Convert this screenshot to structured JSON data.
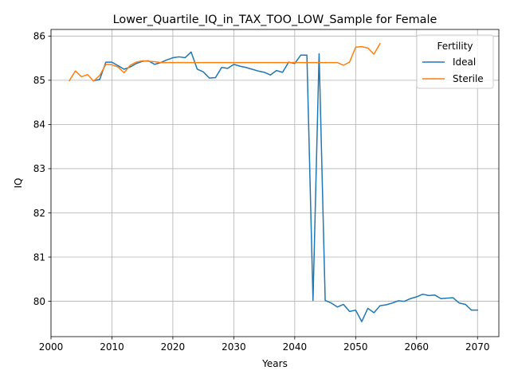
{
  "chart_data": {
    "type": "line",
    "title": "Lower_Quartile_IQ_in_TAX_TOO_LOW_Sample for Female",
    "xlabel": "Years",
    "ylabel": "IQ",
    "xlim": [
      2000,
      2073.5
    ],
    "ylim": [
      79.2,
      86.15
    ],
    "xticks": [
      2000,
      2010,
      2020,
      2030,
      2040,
      2050,
      2060,
      2070
    ],
    "yticks": [
      80,
      81,
      82,
      83,
      84,
      85,
      86
    ],
    "grid": true,
    "legend": {
      "title": "Fertility",
      "position": "top-right"
    },
    "series": [
      {
        "name": "Ideal",
        "color": "#1f77b4",
        "x": [
          2007,
          2008,
          2009,
          2010,
          2011,
          2012,
          2013,
          2014,
          2015,
          2016,
          2017,
          2018,
          2019,
          2020,
          2021,
          2022,
          2023,
          2024,
          2025,
          2026,
          2027,
          2028,
          2029,
          2030,
          2031,
          2032,
          2033,
          2034,
          2035,
          2036,
          2037,
          2038,
          2039,
          2040,
          2041,
          2042,
          2043,
          2044,
          2045,
          2046,
          2047,
          2048,
          2049,
          2050,
          2051,
          2052,
          2053,
          2054,
          2055,
          2056,
          2057,
          2058,
          2059,
          2060,
          2061,
          2062,
          2063,
          2064,
          2065,
          2066,
          2067,
          2068,
          2069,
          2070
        ],
        "y": [
          84.99,
          85.02,
          85.41,
          85.41,
          85.33,
          85.25,
          85.3,
          85.38,
          85.43,
          85.44,
          85.36,
          85.4,
          85.46,
          85.51,
          85.53,
          85.51,
          85.64,
          85.25,
          85.19,
          85.05,
          85.06,
          85.29,
          85.27,
          85.36,
          85.32,
          85.29,
          85.25,
          85.21,
          85.18,
          85.12,
          85.22,
          85.18,
          85.41,
          85.38,
          85.57,
          85.57,
          80.02,
          85.6,
          80.02,
          79.96,
          79.87,
          79.93,
          79.77,
          79.8,
          79.54,
          79.84,
          79.74,
          79.9,
          79.92,
          79.96,
          80.01,
          80.0,
          80.06,
          80.1,
          80.16,
          80.13,
          80.14,
          80.06,
          80.07,
          80.08,
          79.96,
          79.93,
          79.8,
          79.8
        ]
      },
      {
        "name": "Sterile",
        "color": "#ff7f0e",
        "x": [
          2003,
          2004,
          2005,
          2006,
          2007,
          2008,
          2009,
          2010,
          2011,
          2012,
          2013,
          2014,
          2015,
          2016,
          2017,
          2018,
          2019,
          2020,
          2021,
          2022,
          2023,
          2024,
          2025,
          2026,
          2027,
          2028,
          2029,
          2030,
          2031,
          2032,
          2033,
          2034,
          2035,
          2036,
          2037,
          2038,
          2039,
          2040,
          2041,
          2042,
          2043,
          2044,
          2045,
          2046,
          2047,
          2048,
          2049,
          2050,
          2051,
          2052,
          2053,
          2054
        ],
        "y": [
          84.99,
          85.21,
          85.08,
          85.13,
          84.98,
          85.11,
          85.36,
          85.35,
          85.3,
          85.17,
          85.34,
          85.41,
          85.44,
          85.43,
          85.42,
          85.4,
          85.4,
          85.4,
          85.4,
          85.4,
          85.4,
          85.4,
          85.4,
          85.4,
          85.4,
          85.4,
          85.4,
          85.4,
          85.4,
          85.4,
          85.4,
          85.4,
          85.4,
          85.4,
          85.4,
          85.4,
          85.4,
          85.4,
          85.4,
          85.4,
          85.4,
          85.4,
          85.4,
          85.4,
          85.4,
          85.34,
          85.41,
          85.75,
          85.76,
          85.73,
          85.59,
          85.83
        ]
      }
    ]
  }
}
